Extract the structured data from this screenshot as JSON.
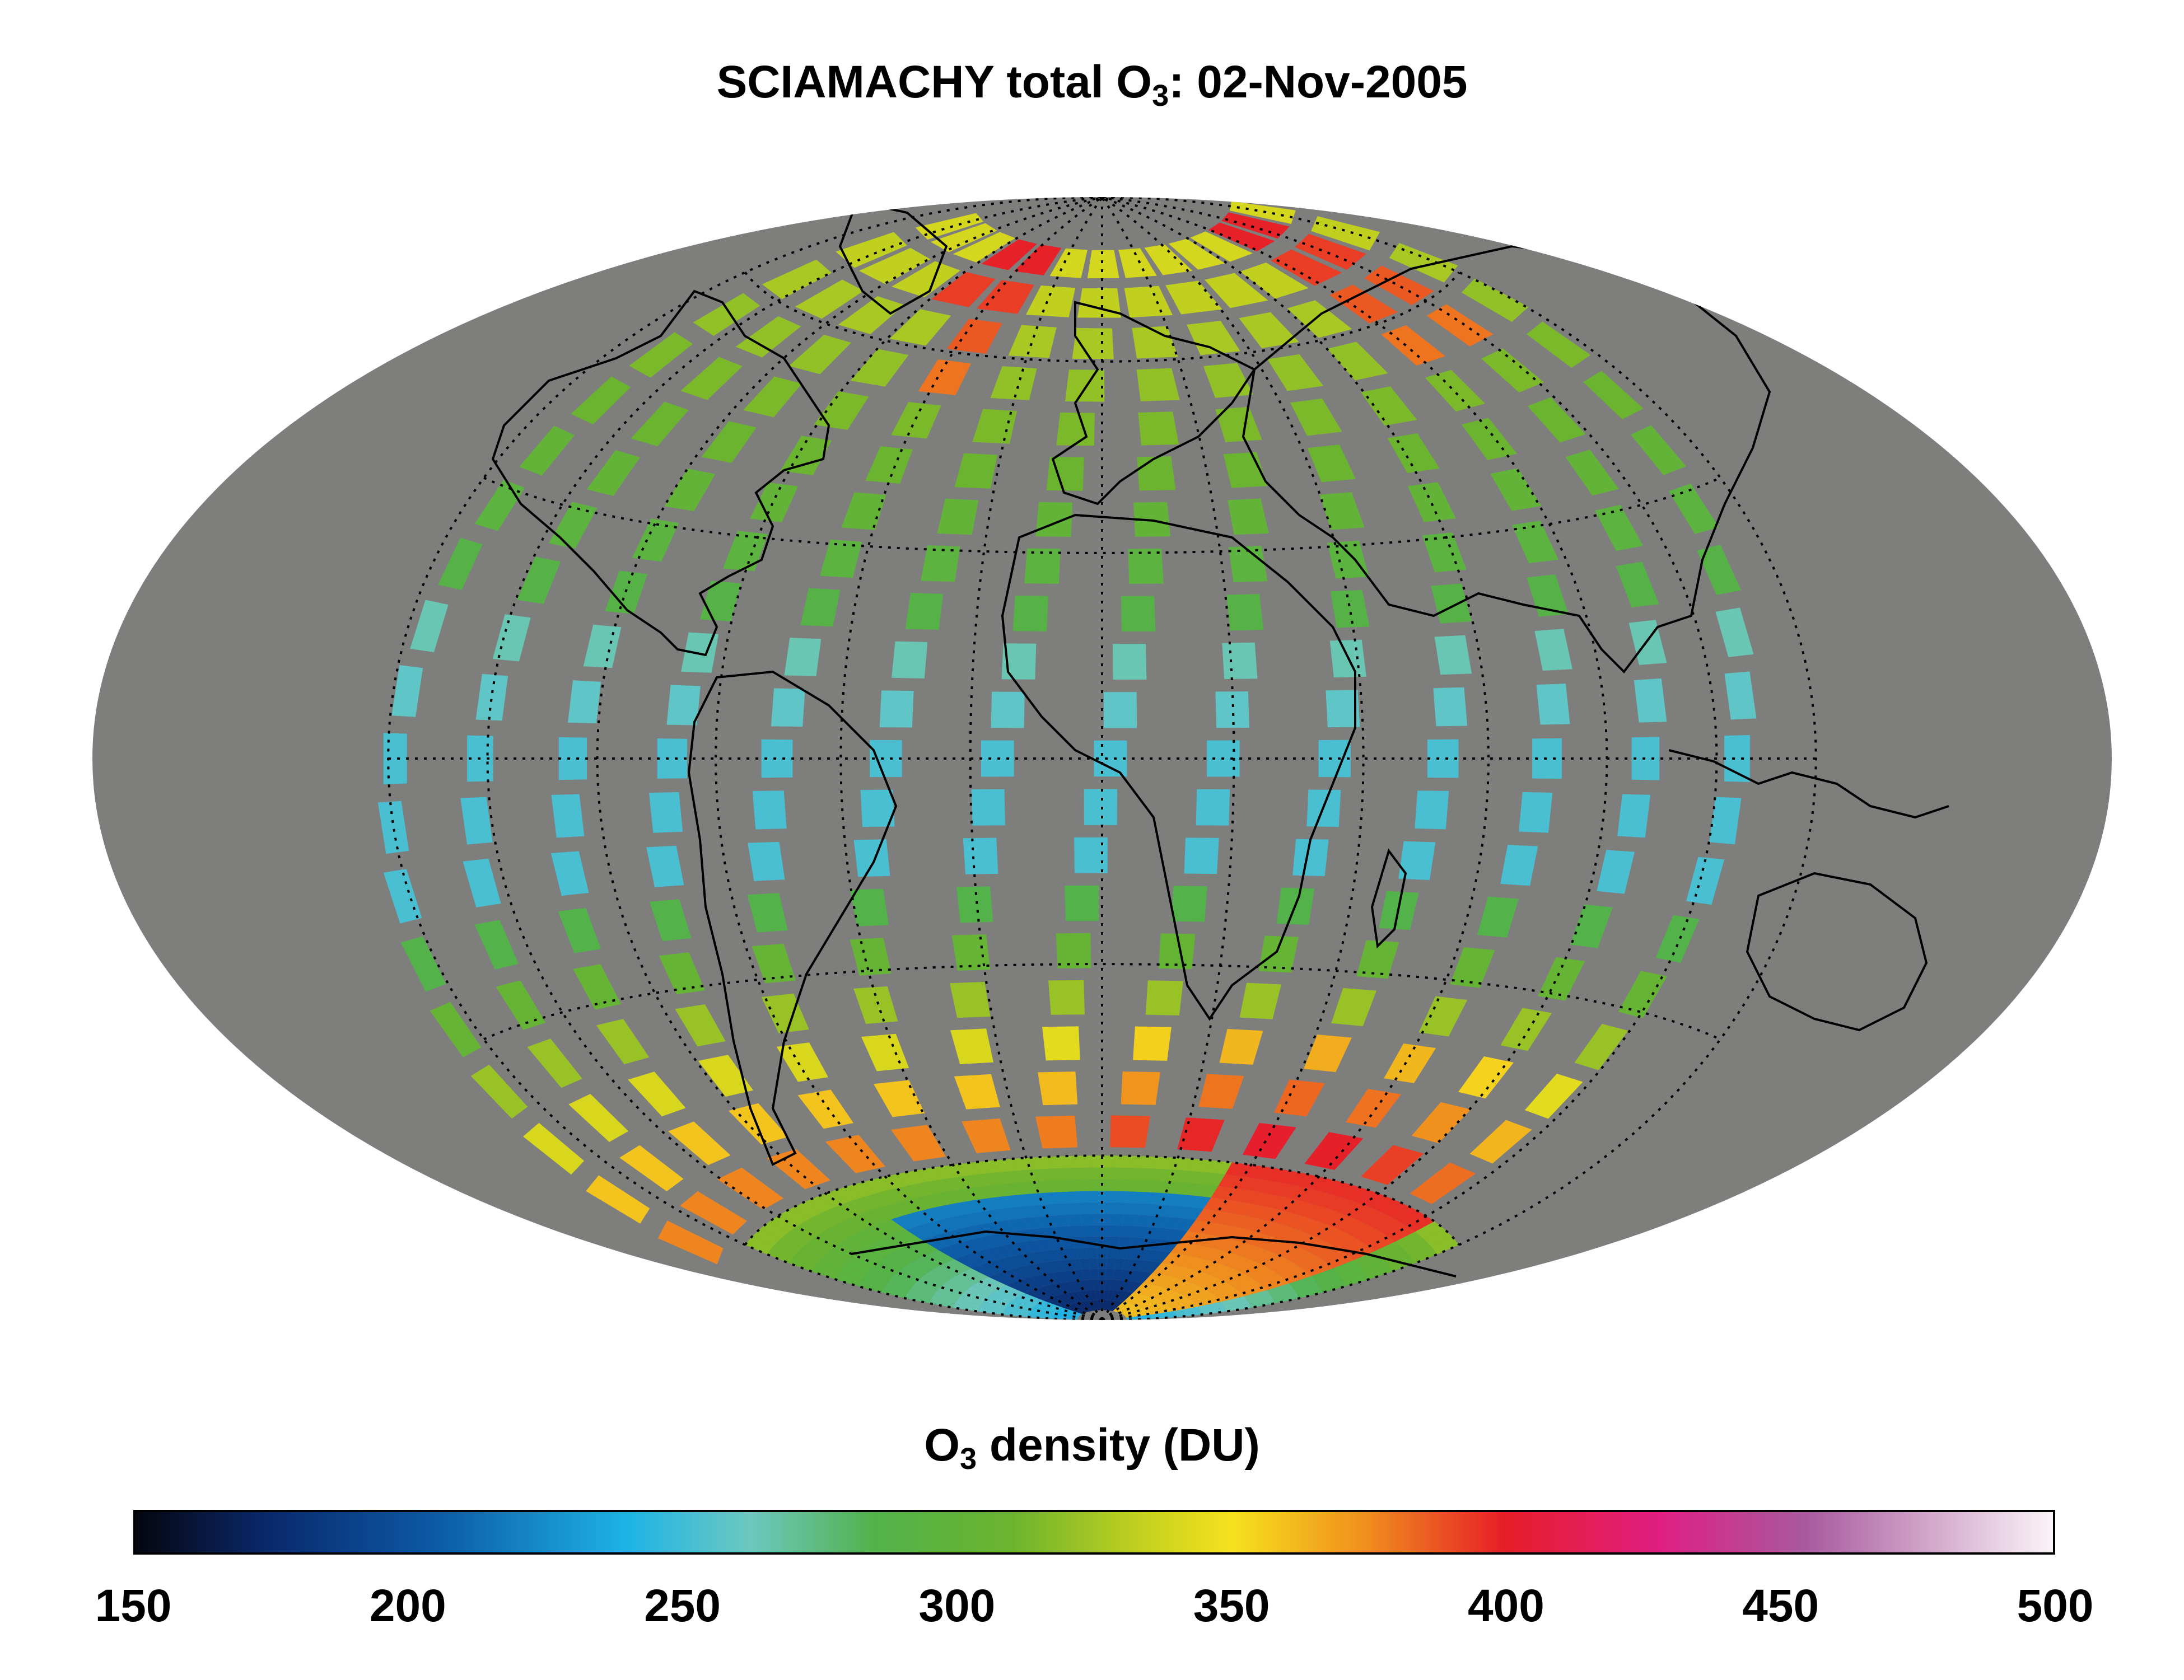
{
  "title": {
    "prefix": "SCIAMACHY total O",
    "subscript": "3",
    "suffix": ": 02-Nov-2005"
  },
  "map": {
    "projection": "Hammer-Aitoff",
    "background_color": "#7e7f7d",
    "graticule": "dotted",
    "coastlines": true,
    "south_pole_ozone_hole": true
  },
  "colorbar": {
    "label_prefix": "O",
    "label_subscript": "3",
    "label_suffix": " density (DU)",
    "min": 150,
    "max": 500,
    "ticks": [
      "150",
      "200",
      "250",
      "300",
      "350",
      "400",
      "450",
      "500"
    ],
    "stops": [
      {
        "value": 150,
        "color": "#05060f"
      },
      {
        "value": 175,
        "color": "#0a2a6e"
      },
      {
        "value": 205,
        "color": "#0c5aa6"
      },
      {
        "value": 240,
        "color": "#1eb4e6"
      },
      {
        "value": 262,
        "color": "#6cc8c0"
      },
      {
        "value": 285,
        "color": "#52b24a"
      },
      {
        "value": 310,
        "color": "#6cb42e"
      },
      {
        "value": 335,
        "color": "#c8d21e"
      },
      {
        "value": 350,
        "color": "#f5e11e"
      },
      {
        "value": 375,
        "color": "#f08c1e"
      },
      {
        "value": 400,
        "color": "#e61e28"
      },
      {
        "value": 428,
        "color": "#e01e82"
      },
      {
        "value": 455,
        "color": "#a85a9e"
      },
      {
        "value": 500,
        "color": "#fbf4f8"
      }
    ]
  }
}
